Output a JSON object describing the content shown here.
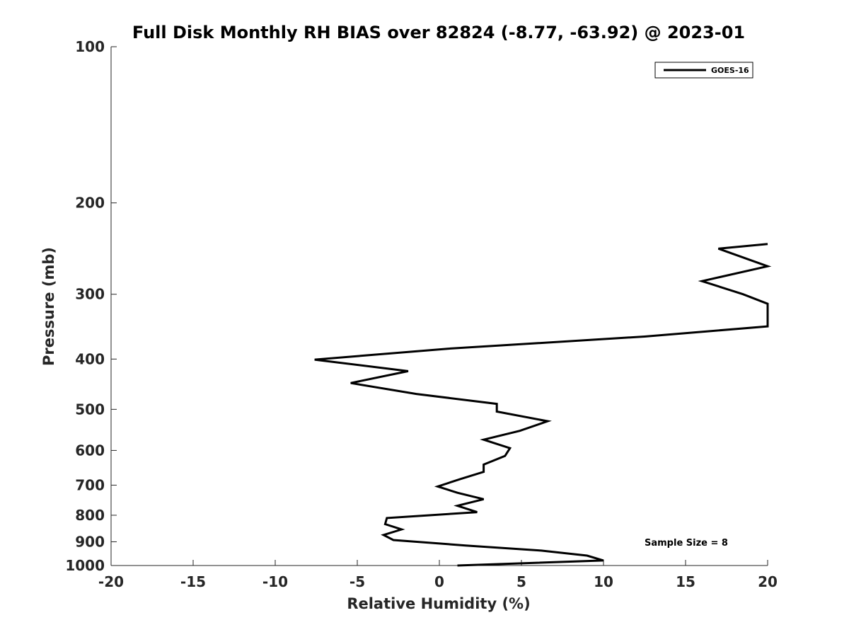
{
  "chart_data": {
    "type": "line",
    "title": "Full Disk Monthly RH BIAS over 82824 (-8.77, -63.92) @ 2023-01",
    "xlabel": "Relative Humidity (%)",
    "ylabel": "Pressure (mb)",
    "xlim": [
      -20,
      20
    ],
    "ylim": [
      1000,
      100
    ],
    "yscale": "log",
    "y_reversed": true,
    "grid": false,
    "x_ticks": [
      -20,
      -15,
      -10,
      -5,
      0,
      5,
      10,
      15,
      20
    ],
    "y_ticks": [
      100,
      200,
      300,
      400,
      500,
      600,
      700,
      800,
      900,
      1000
    ],
    "legend_position": "top-right",
    "series": [
      {
        "name": "GOES-16",
        "color": "#000000",
        "points": [
          {
            "x": 20.0,
            "y": 240
          },
          {
            "x": 17.0,
            "y": 245
          },
          {
            "x": 20.0,
            "y": 265
          },
          {
            "x": 16.0,
            "y": 283
          },
          {
            "x": 18.5,
            "y": 300
          },
          {
            "x": 20.0,
            "y": 313
          },
          {
            "x": 20.0,
            "y": 346
          },
          {
            "x": 12.5,
            "y": 362
          },
          {
            "x": 0.5,
            "y": 382
          },
          {
            "x": -7.6,
            "y": 401
          },
          {
            "x": -1.9,
            "y": 422
          },
          {
            "x": -5.4,
            "y": 445
          },
          {
            "x": -1.4,
            "y": 467
          },
          {
            "x": 3.5,
            "y": 488
          },
          {
            "x": 3.5,
            "y": 505
          },
          {
            "x": 6.6,
            "y": 527
          },
          {
            "x": 4.9,
            "y": 550
          },
          {
            "x": 2.7,
            "y": 572
          },
          {
            "x": 4.3,
            "y": 594
          },
          {
            "x": 4.0,
            "y": 615
          },
          {
            "x": 2.7,
            "y": 639
          },
          {
            "x": 2.7,
            "y": 660
          },
          {
            "x": 1.3,
            "y": 681
          },
          {
            "x": -0.1,
            "y": 704
          },
          {
            "x": 1.1,
            "y": 724
          },
          {
            "x": 2.7,
            "y": 745
          },
          {
            "x": 1.1,
            "y": 767
          },
          {
            "x": 2.3,
            "y": 789
          },
          {
            "x": -3.2,
            "y": 810
          },
          {
            "x": -3.3,
            "y": 832
          },
          {
            "x": -2.3,
            "y": 852
          },
          {
            "x": -3.4,
            "y": 873
          },
          {
            "x": -2.8,
            "y": 893
          },
          {
            "x": 1.6,
            "y": 915
          },
          {
            "x": 6.2,
            "y": 936
          },
          {
            "x": 9.0,
            "y": 957
          },
          {
            "x": 10.0,
            "y": 978
          },
          {
            "x": 1.1,
            "y": 1000
          }
        ]
      }
    ],
    "annotations": [
      {
        "text": "Sample Size = 8"
      }
    ]
  }
}
